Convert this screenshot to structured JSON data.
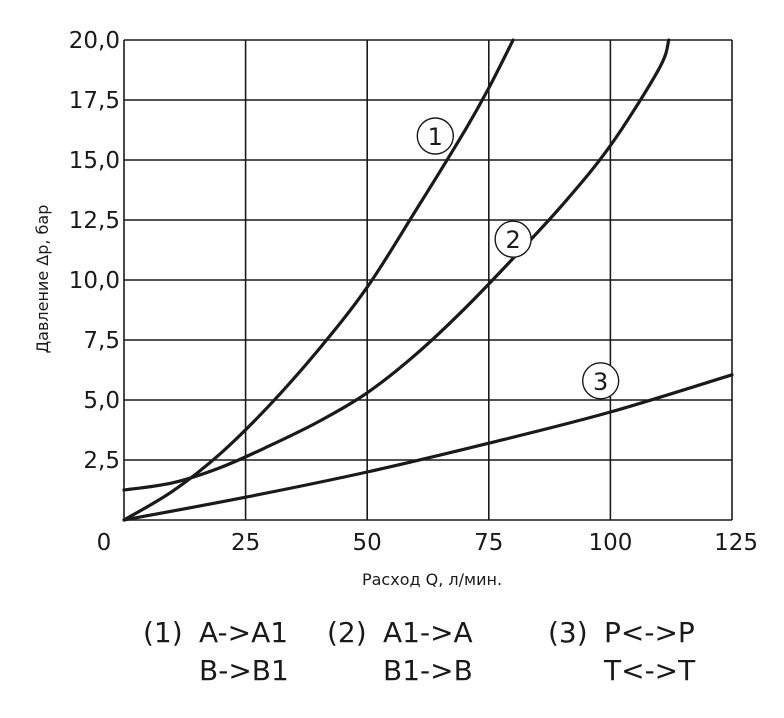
{
  "chart_data": {
    "type": "line",
    "xlabel": "Расход Q, л/мин.",
    "ylabel": "Давление Δp, бар",
    "xlim": [
      0,
      125
    ],
    "ylim": [
      0,
      20
    ],
    "x_ticks": [
      "0",
      "25",
      "50",
      "75",
      "100",
      "125"
    ],
    "y_ticks": [
      "2,5",
      "5,0",
      "7,5",
      "10,0",
      "12,5",
      "15,0",
      "17,5",
      "20,0"
    ],
    "grid": true,
    "series": [
      {
        "name": "1",
        "x": [
          0,
          10,
          20,
          30,
          40,
          50,
          60,
          70,
          75,
          80
        ],
        "y": [
          0,
          1.2,
          2.8,
          4.8,
          7.1,
          9.7,
          12.9,
          16.2,
          18.0,
          20.0
        ]
      },
      {
        "name": "2",
        "x": [
          0,
          10,
          20,
          30,
          40,
          50,
          60,
          70,
          80,
          90,
          100,
          110,
          112
        ],
        "y": [
          1.25,
          1.55,
          2.2,
          3.1,
          4.1,
          5.3,
          6.9,
          8.8,
          10.9,
          13.1,
          15.6,
          18.8,
          20.0
        ]
      },
      {
        "name": "3",
        "x": [
          0,
          25,
          50,
          75,
          100,
          125
        ],
        "y": [
          0,
          0.95,
          2.0,
          3.2,
          4.5,
          6.05
        ]
      }
    ],
    "curve_labels": [
      {
        "label": "1",
        "x": 64,
        "y": 16.0
      },
      {
        "label": "2",
        "x": 80,
        "y": 11.7
      },
      {
        "label": "3",
        "x": 98,
        "y": 5.8
      }
    ]
  },
  "legend": [
    {
      "num": "(1)",
      "lines": [
        "A->A1",
        "B->B1"
      ]
    },
    {
      "num": "(2)",
      "lines": [
        "A1->A",
        "B1->B"
      ]
    },
    {
      "num": "(3)",
      "lines": [
        "P<->P",
        "T<->T"
      ]
    }
  ]
}
